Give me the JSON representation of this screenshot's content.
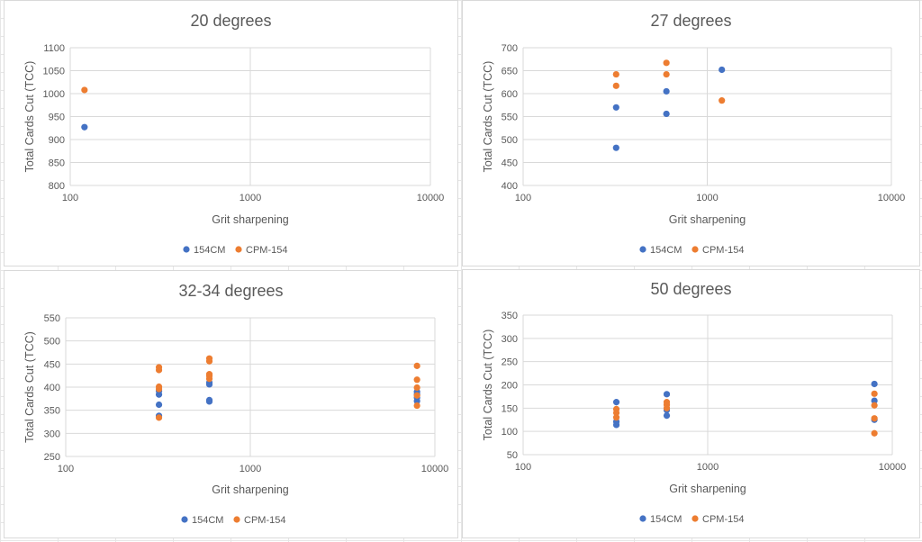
{
  "colors": {
    "series1": "#4472c4",
    "series2": "#ed7d31",
    "grid": "#d9d9d9",
    "text": "#595959"
  },
  "chart_data": [
    {
      "type": "scatter",
      "title": "20 degrees",
      "xlabel": "Grit sharpening",
      "ylabel": "Total Cards Cut (TCC)",
      "x_scale": "log",
      "xlim": [
        100,
        10000
      ],
      "x_ticks": [
        "100",
        "1000",
        "10000"
      ],
      "ylim": [
        800,
        1100
      ],
      "y_ticks": [
        "800",
        "850",
        "900",
        "950",
        "1000",
        "1050",
        "1100"
      ],
      "grid": true,
      "legend": "bottom",
      "series": [
        {
          "name": "154CM",
          "points": [
            [
              120,
              927
            ]
          ]
        },
        {
          "name": "CPM-154",
          "points": [
            [
              120,
              1008
            ]
          ]
        }
      ]
    },
    {
      "type": "scatter",
      "title": "27 degrees",
      "xlabel": "Grit sharpening",
      "ylabel": "Total Cards Cut (TCC)",
      "x_scale": "log",
      "xlim": [
        100,
        10000
      ],
      "x_ticks": [
        "100",
        "1000",
        "10000"
      ],
      "ylim": [
        400,
        700
      ],
      "y_ticks": [
        "400",
        "450",
        "500",
        "550",
        "600",
        "650",
        "700"
      ],
      "grid": true,
      "legend": "bottom",
      "series": [
        {
          "name": "154CM",
          "points": [
            [
              320,
              482
            ],
            [
              320,
              570
            ],
            [
              600,
              556
            ],
            [
              600,
              605
            ],
            [
              1200,
              652
            ]
          ]
        },
        {
          "name": "CPM-154",
          "points": [
            [
              320,
              617
            ],
            [
              320,
              642
            ],
            [
              600,
              642
            ],
            [
              600,
              667
            ],
            [
              1200,
              585
            ]
          ]
        }
      ]
    },
    {
      "type": "scatter",
      "title": "32-34 degrees",
      "xlabel": "Grit sharpening",
      "ylabel": "Total Cards Cut (TCC)",
      "x_scale": "log",
      "xlim": [
        100,
        10000
      ],
      "x_ticks": [
        "100",
        "1000",
        "10000"
      ],
      "ylim": [
        250,
        550
      ],
      "y_ticks": [
        "250",
        "300",
        "350",
        "400",
        "450",
        "500",
        "550"
      ],
      "grid": true,
      "legend": "bottom",
      "series": [
        {
          "name": "154CM",
          "points": [
            [
              320,
              338
            ],
            [
              320,
              362
            ],
            [
              320,
              384
            ],
            [
              320,
              392
            ],
            [
              600,
              369
            ],
            [
              600,
              372
            ],
            [
              600,
              406
            ],
            [
              600,
              410
            ],
            [
              8000,
              370
            ],
            [
              8000,
              377
            ],
            [
              8000,
              384
            ],
            [
              8000,
              390
            ]
          ]
        },
        {
          "name": "CPM-154",
          "points": [
            [
              320,
              334
            ],
            [
              320,
              396
            ],
            [
              320,
              401
            ],
            [
              320,
              437
            ],
            [
              320,
              443
            ],
            [
              600,
              418
            ],
            [
              600,
              424
            ],
            [
              600,
              428
            ],
            [
              600,
              456
            ],
            [
              600,
              462
            ],
            [
              8000,
              360
            ],
            [
              8000,
              382
            ],
            [
              8000,
              399
            ],
            [
              8000,
              416
            ],
            [
              8000,
              446
            ]
          ]
        }
      ]
    },
    {
      "type": "scatter",
      "title": "50 degrees",
      "xlabel": "Grit sharpening",
      "ylabel": "Total Cards Cut (TCC)",
      "x_scale": "log",
      "xlim": [
        100,
        10000
      ],
      "x_ticks": [
        "100",
        "1000",
        "10000"
      ],
      "ylim": [
        50,
        350
      ],
      "y_ticks": [
        "50",
        "100",
        "150",
        "200",
        "250",
        "300",
        "350"
      ],
      "grid": true,
      "legend": "bottom",
      "series": [
        {
          "name": "154CM",
          "points": [
            [
              320,
              114
            ],
            [
              320,
              121
            ],
            [
              320,
              163
            ],
            [
              600,
              134
            ],
            [
              600,
              146
            ],
            [
              600,
              180
            ],
            [
              8000,
              125
            ],
            [
              8000,
              166
            ],
            [
              8000,
              202
            ]
          ]
        },
        {
          "name": "CPM-154",
          "points": [
            [
              320,
              130
            ],
            [
              320,
              140
            ],
            [
              320,
              148
            ],
            [
              600,
              150
            ],
            [
              600,
              157
            ],
            [
              600,
              163
            ],
            [
              8000,
              96
            ],
            [
              8000,
              128
            ],
            [
              8000,
              156
            ],
            [
              8000,
              181
            ]
          ]
        }
      ]
    }
  ]
}
